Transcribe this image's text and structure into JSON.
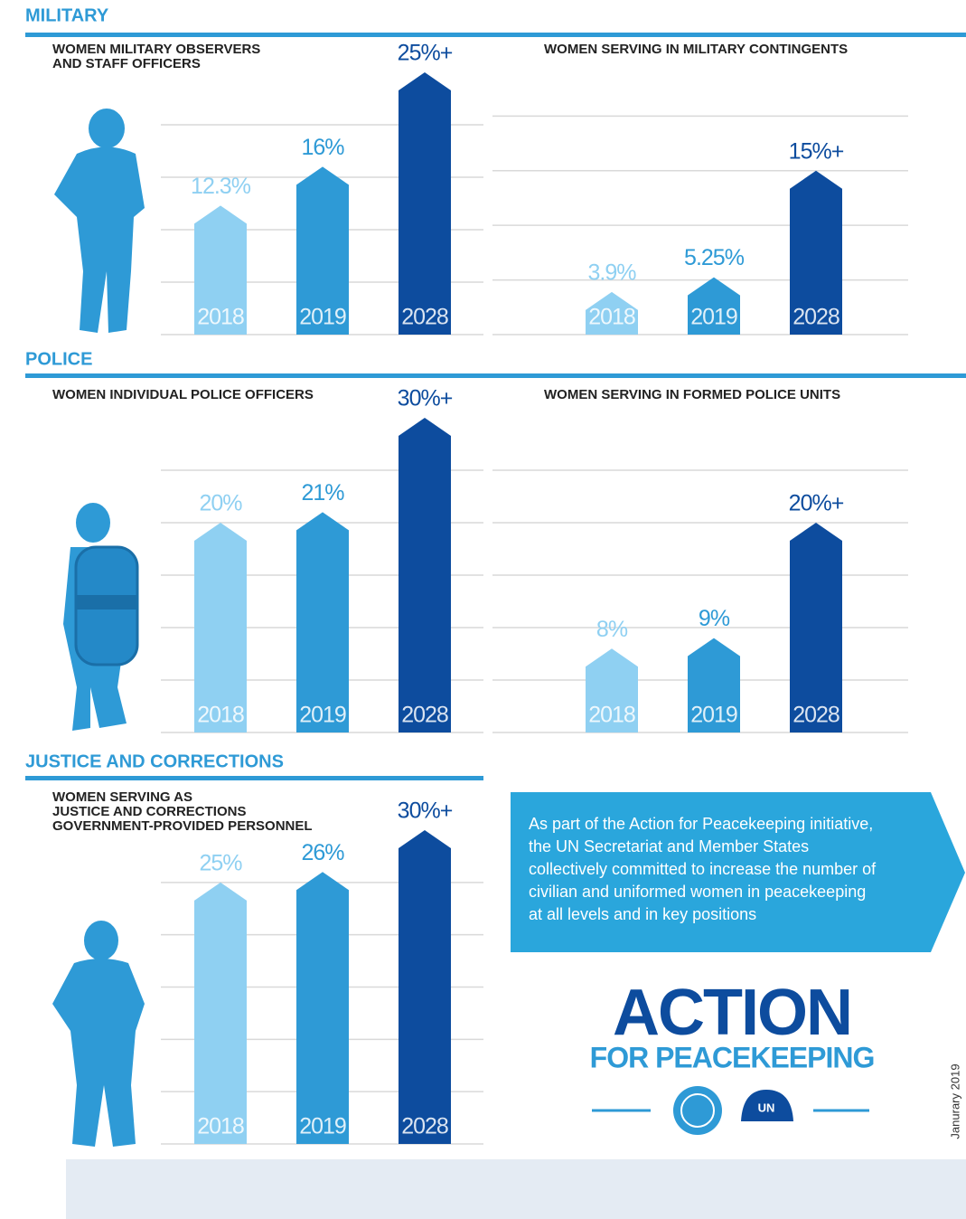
{
  "sections": [
    {
      "title": "MILITARY"
    },
    {
      "title": "POLICE"
    },
    {
      "title": "JUSTICE AND CORRECTIONS"
    }
  ],
  "chart_data": [
    {
      "type": "bar",
      "title": [
        "WOMEN MILITARY OBSERVERS",
        "AND STAFF OFFICERS"
      ],
      "categories": [
        "2018",
        "2019",
        "2028"
      ],
      "values": [
        12.3,
        16,
        25
      ],
      "value_labels": [
        "12.3%",
        "16%",
        "25%+"
      ],
      "colors": [
        "#8fd0f2",
        "#2e9ad6",
        "#0d4c9e"
      ],
      "ylim": [
        0,
        25
      ],
      "yticks": [
        5,
        10,
        15,
        20
      ],
      "grid": true
    },
    {
      "type": "bar",
      "title": [
        "WOMEN SERVING IN MILITARY CONTINGENTS"
      ],
      "categories": [
        "2018",
        "2019",
        "2028"
      ],
      "values": [
        3.9,
        5.25,
        15
      ],
      "value_labels": [
        "3.9%",
        "5.25%",
        "15%+"
      ],
      "colors": [
        "#8fd0f2",
        "#2e9ad6",
        "#0d4c9e"
      ],
      "ylim": [
        0,
        24
      ],
      "yticks": [
        5,
        10,
        15,
        20
      ],
      "grid": true
    },
    {
      "type": "bar",
      "title": [
        "WOMEN INDIVIDUAL POLICE OFFICERS"
      ],
      "categories": [
        "2018",
        "2019",
        "2028"
      ],
      "values": [
        20,
        21,
        30
      ],
      "value_labels": [
        "20%",
        "21%",
        "30%+"
      ],
      "colors": [
        "#8fd0f2",
        "#2e9ad6",
        "#0d4c9e"
      ],
      "ylim": [
        0,
        30
      ],
      "yticks": [
        5,
        10,
        15,
        20,
        25
      ],
      "grid": true
    },
    {
      "type": "bar",
      "title": [
        "WOMEN SERVING IN FORMED POLICE UNITS"
      ],
      "categories": [
        "2018",
        "2019",
        "2028"
      ],
      "values": [
        8,
        9,
        20
      ],
      "value_labels": [
        "8%",
        "9%",
        "20%+"
      ],
      "colors": [
        "#8fd0f2",
        "#2e9ad6",
        "#0d4c9e"
      ],
      "ylim": [
        0,
        30
      ],
      "yticks": [
        5,
        10,
        15,
        20,
        25
      ],
      "grid": true
    },
    {
      "type": "bar",
      "title": [
        "WOMEN SERVING AS",
        "JUSTICE AND CORRECTIONS",
        "GOVERNMENT-PROVIDED PERSONNEL"
      ],
      "categories": [
        "2018",
        "2019",
        "2028"
      ],
      "values": [
        25,
        26,
        30
      ],
      "value_labels": [
        "25%",
        "26%",
        "30%+"
      ],
      "colors": [
        "#8fd0f2",
        "#2e9ad6",
        "#0d4c9e"
      ],
      "ylim": [
        0,
        30
      ],
      "yticks": [
        5,
        10,
        15,
        20,
        25
      ],
      "grid": true
    }
  ],
  "callout": [
    "As part of the Action for Peacekeeping initiative,",
    "the UN  Secretariat and Member States",
    "collectively committed to increase the number of",
    "civilian and uniformed women in peacekeeping",
    "at all levels and in key positions"
  ],
  "logo": {
    "title": "ACTION",
    "subtitle": "FOR PEACEKEEPING",
    "badge": "UN"
  },
  "date": "Janurary 2019"
}
